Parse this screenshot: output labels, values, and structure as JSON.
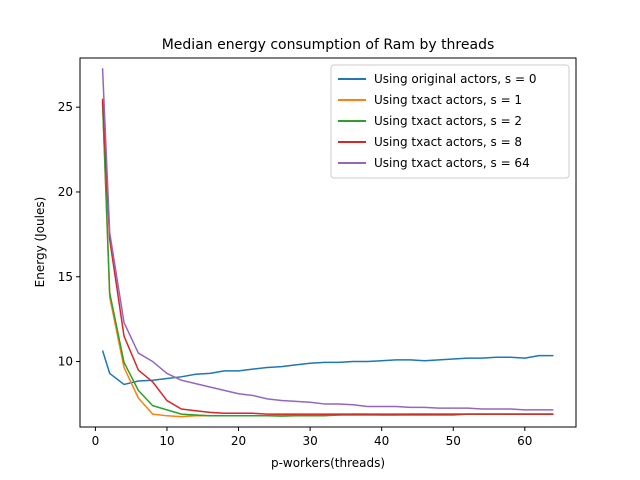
{
  "chart_data": {
    "type": "line",
    "title": "Median energy consumption of Ram by threads",
    "xlabel": "p-workers(threads)",
    "ylabel": "Energy (Joules)",
    "xlim": [
      -2.15,
      67.15
    ],
    "ylim": [
      6.14,
      27.9
    ],
    "xticks": [
      0,
      10,
      20,
      30,
      40,
      50,
      60
    ],
    "yticks": [
      10,
      15,
      20,
      25
    ],
    "grid": false,
    "legend_position": "top-right",
    "x": [
      1,
      2,
      4,
      6,
      8,
      10,
      12,
      14,
      16,
      18,
      20,
      22,
      24,
      26,
      28,
      30,
      32,
      34,
      36,
      38,
      40,
      42,
      44,
      46,
      48,
      50,
      52,
      54,
      56,
      58,
      60,
      62,
      64
    ],
    "series": [
      {
        "name": "Using original actors, s = 0",
        "color": "#1f77b4",
        "values": [
          10.65,
          9.3,
          8.65,
          8.85,
          8.9,
          9.0,
          9.1,
          9.25,
          9.3,
          9.45,
          9.45,
          9.55,
          9.65,
          9.7,
          9.8,
          9.9,
          9.95,
          9.95,
          10.0,
          10.0,
          10.05,
          10.1,
          10.1,
          10.05,
          10.1,
          10.15,
          10.2,
          10.2,
          10.25,
          10.25,
          10.2,
          10.35,
          10.35
        ]
      },
      {
        "name": "Using txact actors, s = 1",
        "color": "#ff7f0e",
        "values": [
          25.3,
          13.8,
          9.65,
          7.85,
          6.9,
          6.8,
          6.75,
          6.8,
          6.8,
          6.8,
          6.8,
          6.8,
          6.8,
          6.85,
          6.85,
          6.85,
          6.85,
          6.85,
          6.9,
          6.9,
          6.85,
          6.85,
          6.9,
          6.9,
          6.9,
          6.9,
          6.9,
          6.9,
          6.9,
          6.9,
          6.9,
          6.9,
          6.9
        ]
      },
      {
        "name": "Using txact actors, s = 2",
        "color": "#2ca02c",
        "values": [
          25.35,
          14.05,
          9.95,
          8.3,
          7.4,
          7.15,
          6.9,
          6.85,
          6.8,
          6.8,
          6.8,
          6.8,
          6.8,
          6.78,
          6.8,
          6.8,
          6.8,
          6.85,
          6.85,
          6.85,
          6.85,
          6.85,
          6.85,
          6.85,
          6.85,
          6.85,
          6.9,
          6.9,
          6.9,
          6.9,
          6.9,
          6.9,
          6.9
        ]
      },
      {
        "name": "Using txact actors, s = 8",
        "color": "#d62728",
        "values": [
          25.5,
          17.2,
          11.5,
          9.5,
          8.8,
          7.7,
          7.2,
          7.1,
          7.0,
          6.95,
          6.95,
          6.95,
          6.9,
          6.9,
          6.9,
          6.9,
          6.9,
          6.9,
          6.9,
          6.9,
          6.9,
          6.9,
          6.9,
          6.9,
          6.9,
          6.9,
          6.9,
          6.9,
          6.9,
          6.9,
          6.9,
          6.9,
          6.9
        ]
      },
      {
        "name": "Using txact actors, s = 64",
        "color": "#9467bd",
        "values": [
          27.3,
          17.6,
          12.3,
          10.5,
          10.0,
          9.3,
          8.9,
          8.7,
          8.5,
          8.3,
          8.1,
          8.0,
          7.8,
          7.7,
          7.65,
          7.6,
          7.5,
          7.5,
          7.45,
          7.35,
          7.35,
          7.35,
          7.3,
          7.3,
          7.25,
          7.25,
          7.25,
          7.2,
          7.2,
          7.2,
          7.15,
          7.15,
          7.15
        ]
      }
    ]
  }
}
